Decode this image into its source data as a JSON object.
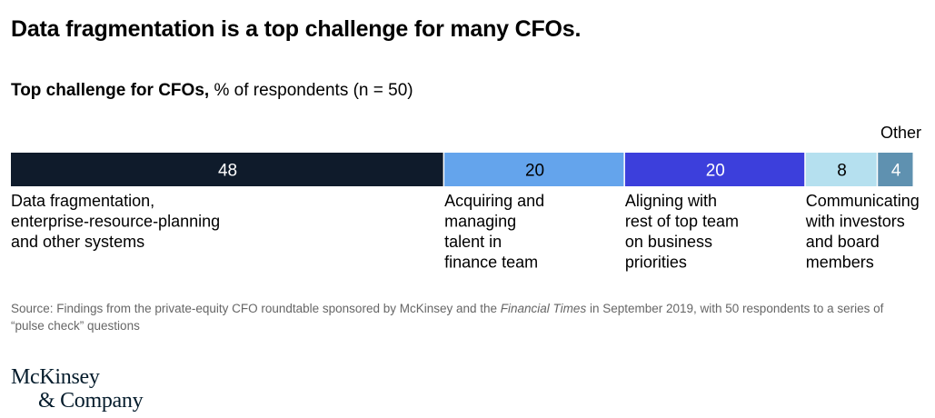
{
  "title": "Data fragmentation is a top challenge for many CFOs.",
  "subtitle": {
    "bold": "Top challenge for CFOs,",
    "rest": " % of respondents (n = 50)"
  },
  "chart_data": {
    "type": "bar",
    "orientation": "horizontal-stacked-100",
    "total": 100,
    "categories": [
      "Data fragmentation, enterprise-resource-planning and other systems",
      "Acquiring and managing talent in finance team",
      "Aligning with rest of top team on business priorities",
      "Communicating with investors and board members",
      "Other"
    ],
    "values": [
      48,
      20,
      20,
      8,
      4
    ],
    "label_lines": [
      [
        "Data fragmentation,",
        "enterprise-resource-planning",
        "and other systems"
      ],
      [
        "Acquiring and",
        "managing",
        "talent in",
        "finance team"
      ],
      [
        "Aligning with",
        "rest of top team",
        "on business",
        "priorities"
      ],
      [
        "Communicating",
        "with investors",
        "and board",
        "members"
      ],
      [
        "Other"
      ]
    ],
    "colors": [
      "#0f1b2b",
      "#64a4ec",
      "#3c3fdc",
      "#b5e0ef",
      "#5f91b0"
    ],
    "value_label_colors": [
      "#ffffff",
      "#000000",
      "#ffffff",
      "#000000",
      "#ffffff"
    ],
    "title": "Top challenge for CFOs, % of respondents (n = 50)",
    "legend": "none",
    "grid": false
  },
  "source": {
    "prefix": "Source: Findings from the private-equity CFO roundtable sponsored by McKinsey and the ",
    "italic": "Financial Times",
    "suffix": " in September 2019, with 50 respondents to a series of “pulse check” questions"
  },
  "logo": {
    "line1": "McKinsey",
    "line2": "& Company"
  }
}
